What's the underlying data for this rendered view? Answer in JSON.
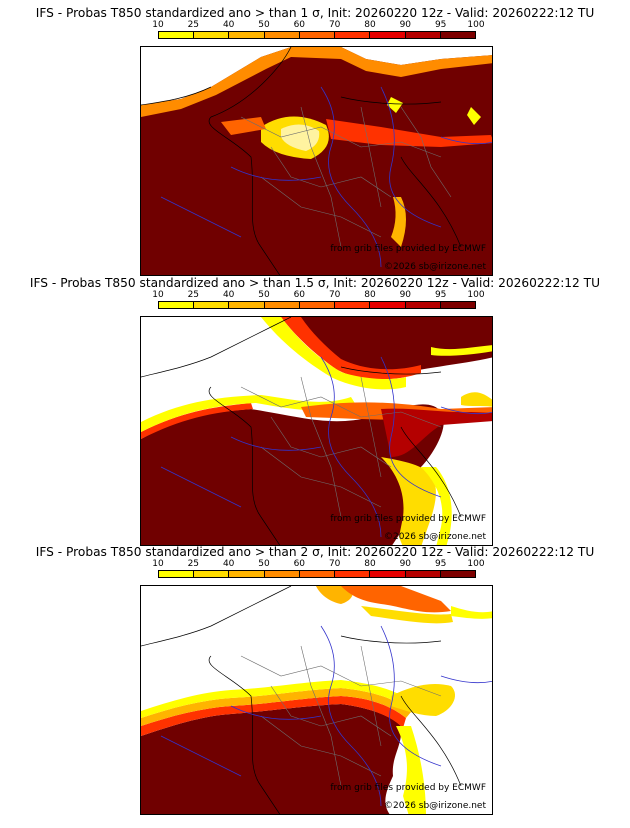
{
  "legend": {
    "ticks": [
      "10",
      "25",
      "40",
      "50",
      "60",
      "70",
      "80",
      "90",
      "95",
      "100"
    ],
    "colors": [
      "#ffff00",
      "#ffdd00",
      "#ffb400",
      "#ff8c00",
      "#ff6400",
      "#ff3200",
      "#e60000",
      "#b40000",
      "#7d0000"
    ]
  },
  "colors": {
    "outside": "#ffffff",
    "high": "#700000",
    "border": "#6e6e6e",
    "rivers": "#3333cc",
    "coast": "#000000"
  },
  "panels": [
    {
      "title": "IFS - Probas T850  standardized ano > than 1 σ, Init: 20260220 12z - Valid: 20260222:12 TU",
      "credit1": "from grib files provided by ECMWF",
      "credit2": "©2026 sb@irizone.net"
    },
    {
      "title": "IFS - Probas T850  standardized ano > than 1.5 σ, Init: 20260220 12z - Valid: 20260222:12 TU",
      "credit1": "from grib files provided by ECMWF",
      "credit2": "©2026 sb@irizone.net"
    },
    {
      "title": "IFS - Probas T850  standardized ano > than 2 σ, Init: 20260220 12z - Valid: 20260222:12 TU",
      "credit1": "from grib files provided by ECMWF",
      "credit2": "©2026 sb@irizone.net"
    }
  ]
}
